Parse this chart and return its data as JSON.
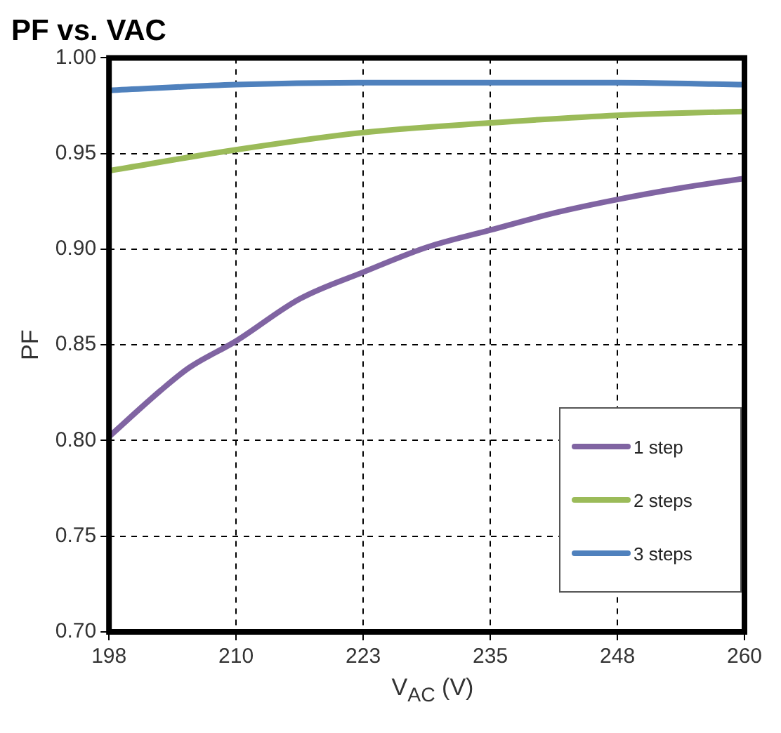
{
  "chart_data": {
    "type": "line",
    "title": "PF vs. VAC",
    "xlabel": "V$_{AC}$ (V)",
    "ylabel": "PF",
    "xlim": [
      198,
      260
    ],
    "xticks": [
      198,
      {
        "value": 210.4,
        "label": "210"
      },
      {
        "value": 222.8,
        "label": "223"
      },
      {
        "value": 235.2,
        "label": "235"
      },
      {
        "value": 247.6,
        "label": "248"
      },
      260
    ],
    "ylim": [
      0.7,
      1.0
    ],
    "yticks": [
      {
        "value": 0.7,
        "label": "0.70"
      },
      {
        "value": 0.75,
        "label": "0.75"
      },
      {
        "value": 0.8,
        "label": "0.80"
      },
      {
        "value": 0.85,
        "label": "0.85"
      },
      {
        "value": 0.9,
        "label": "0.90"
      },
      {
        "value": 0.95,
        "label": "0.95"
      },
      {
        "value": 1.0,
        "label": "1.00"
      }
    ],
    "grid": true,
    "legend": "bottom right",
    "marker": "none",
    "line_style": "solid",
    "series": [
      {
        "name": "1 step",
        "color": "#8064a2",
        "x": [
          198,
          203,
          205.8,
          210.4,
          216.6,
          222.8,
          229,
          235.2,
          241.5,
          247.6,
          253.8,
          260
        ],
        "values": [
          0.802,
          0.826,
          0.838,
          0.852,
          0.874,
          0.888,
          0.901,
          0.91,
          0.919,
          0.926,
          0.932,
          0.937
        ]
      },
      {
        "name": "2 steps",
        "color": "#9bbb59",
        "x": [
          198,
          210.4,
          222.8,
          235.2,
          247.6,
          260
        ],
        "values": [
          0.941,
          0.952,
          0.961,
          0.966,
          0.97,
          0.972
        ]
      },
      {
        "name": "3 steps",
        "color": "#4f81bd",
        "x": [
          198,
          210.4,
          222.8,
          235.2,
          247.6,
          260
        ],
        "values": [
          0.983,
          0.986,
          0.987,
          0.987,
          0.987,
          0.986
        ]
      }
    ]
  }
}
